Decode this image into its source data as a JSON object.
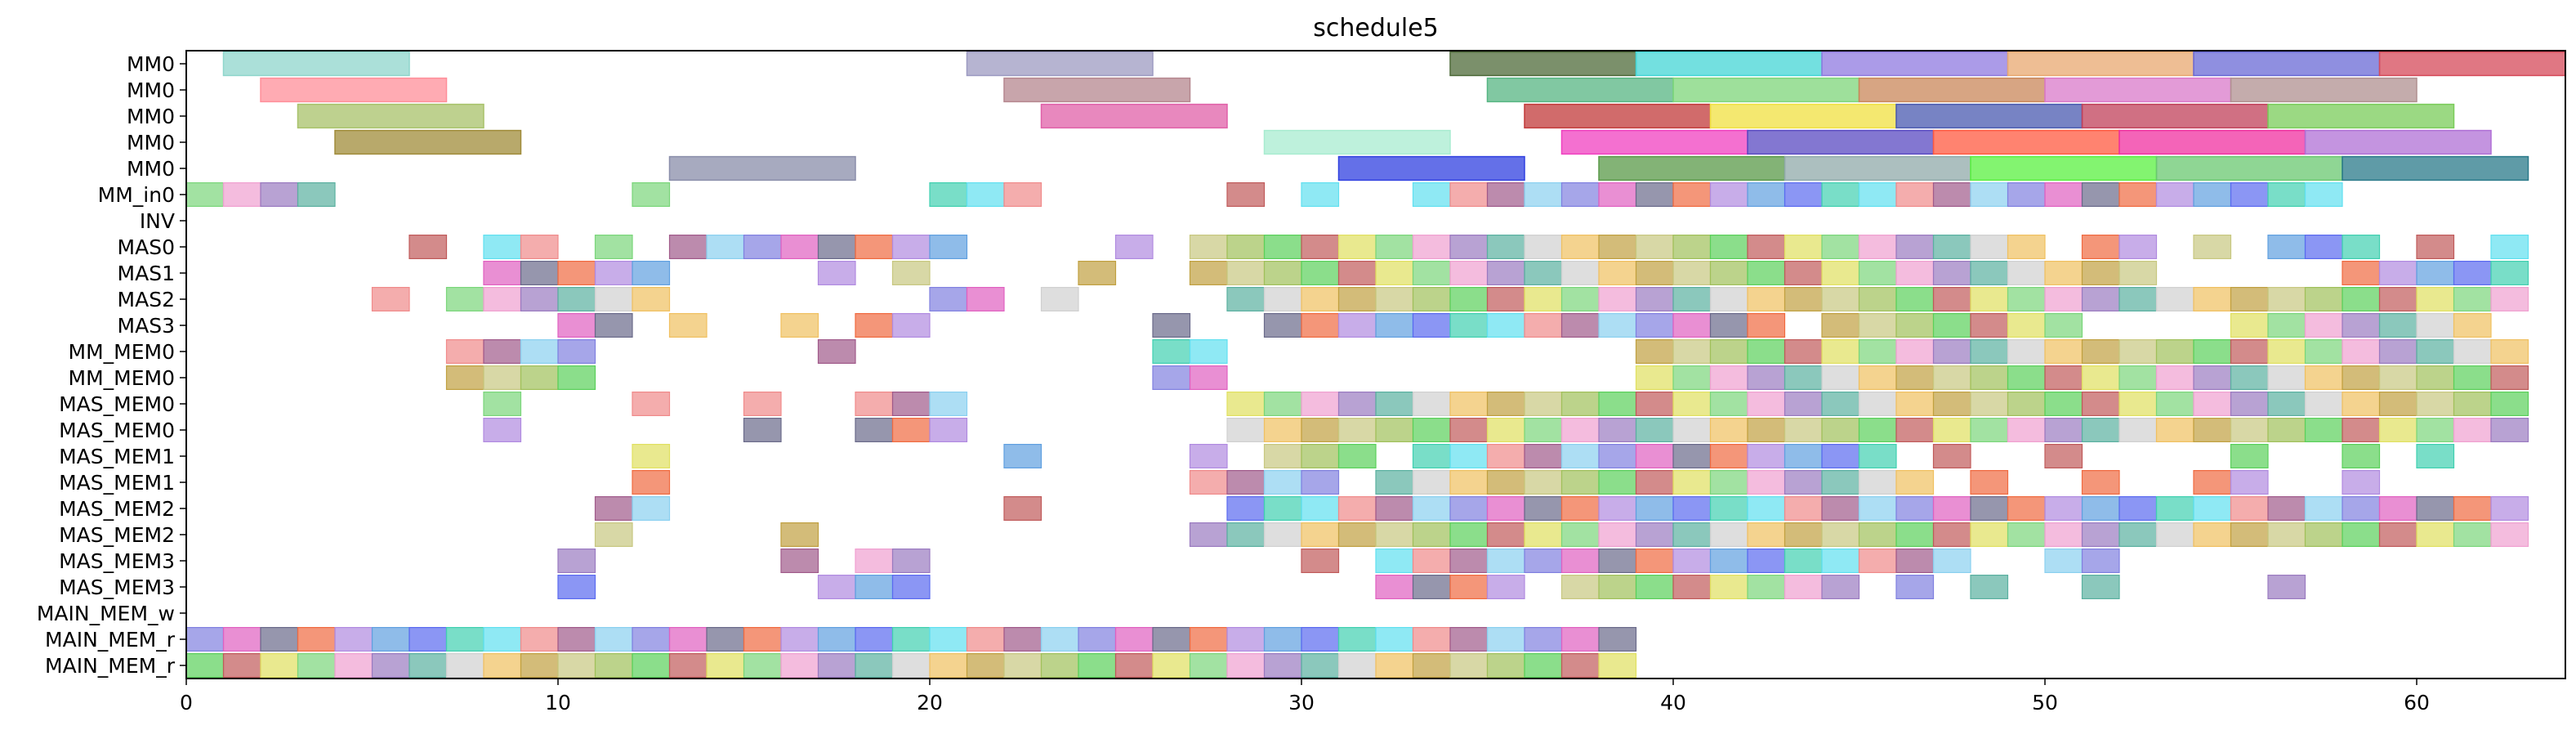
{
  "chart_data": {
    "type": "gantt",
    "title": "schedule5",
    "xlabel": "",
    "ylabel": "",
    "xlim": [
      0,
      64
    ],
    "x_ticks": [
      0,
      10,
      20,
      30,
      40,
      50,
      60
    ],
    "grid": false,
    "rows": [
      "MM0",
      "MM0",
      "MM0",
      "MM0",
      "MM0",
      "MM_in0",
      "INV",
      "MAS0",
      "MAS1",
      "MAS2",
      "MAS3",
      "MM_MEM0",
      "MM_MEM0",
      "MAS_MEM0",
      "MAS_MEM0",
      "MAS_MEM1",
      "MAS_MEM1",
      "MAS_MEM2",
      "MAS_MEM2",
      "MAS_MEM3",
      "MAS_MEM3",
      "MAIN_MEM_w",
      "MAIN_MEM_r",
      "MAIN_MEM_r"
    ],
    "bars": [
      {
        "row": 0,
        "start": 1,
        "end": 6,
        "color": "#8fd6cc"
      },
      {
        "row": 0,
        "start": 21,
        "end": 26,
        "color": "#9d9bc2"
      },
      {
        "row": 0,
        "start": 34,
        "end": 39,
        "color": "#4f6b3a"
      },
      {
        "row": 0,
        "start": 39,
        "end": 44,
        "color": "#44d6d6"
      },
      {
        "row": 0,
        "start": 44,
        "end": 49,
        "color": "#8f79e0"
      },
      {
        "row": 0,
        "start": 49,
        "end": 54,
        "color": "#e8a870"
      },
      {
        "row": 0,
        "start": 54,
        "end": 59,
        "color": "#6a6ad6"
      },
      {
        "row": 0,
        "start": 59,
        "end": 64,
        "color": "#d64a5a"
      },
      {
        "row": 1,
        "start": 2,
        "end": 7,
        "color": "#ff8f9a"
      },
      {
        "row": 1,
        "start": 22,
        "end": 27,
        "color": "#b5878f"
      },
      {
        "row": 1,
        "start": 35,
        "end": 40,
        "color": "#57b583"
      },
      {
        "row": 1,
        "start": 40,
        "end": 45,
        "color": "#7ed67a"
      },
      {
        "row": 1,
        "start": 45,
        "end": 50,
        "color": "#c9875a"
      },
      {
        "row": 1,
        "start": 50,
        "end": 55,
        "color": "#d979c9"
      },
      {
        "row": 1,
        "start": 55,
        "end": 60,
        "color": "#b09090"
      },
      {
        "row": 2,
        "start": 3,
        "end": 8,
        "color": "#a8c26a"
      },
      {
        "row": 2,
        "start": 23,
        "end": 28,
        "color": "#e060a8"
      },
      {
        "row": 2,
        "start": 36,
        "end": 41,
        "color": "#c23a3a"
      },
      {
        "row": 2,
        "start": 41,
        "end": 46,
        "color": "#f0e040"
      },
      {
        "row": 2,
        "start": 46,
        "end": 51,
        "color": "#4a5ab0"
      },
      {
        "row": 2,
        "start": 51,
        "end": 56,
        "color": "#c0405a"
      },
      {
        "row": 2,
        "start": 56,
        "end": 61,
        "color": "#7acc5a"
      },
      {
        "row": 3,
        "start": 4,
        "end": 9,
        "color": "#a08c3a"
      },
      {
        "row": 3,
        "start": 29,
        "end": 34,
        "color": "#a8ecd0"
      },
      {
        "row": 3,
        "start": 37,
        "end": 42,
        "color": "#f040c0"
      },
      {
        "row": 3,
        "start": 42,
        "end": 47,
        "color": "#5a4ac2"
      },
      {
        "row": 3,
        "start": 47,
        "end": 52,
        "color": "#ff5a40"
      },
      {
        "row": 3,
        "start": 52,
        "end": 57,
        "color": "#f030a0"
      },
      {
        "row": 3,
        "start": 57,
        "end": 62,
        "color": "#b070d6"
      },
      {
        "row": 4,
        "start": 13,
        "end": 18,
        "color": "#8a8eaa"
      },
      {
        "row": 4,
        "start": 31,
        "end": 36,
        "color": "#3040e0"
      },
      {
        "row": 4,
        "start": 38,
        "end": 43,
        "color": "#5a9a48"
      },
      {
        "row": 4,
        "start": 43,
        "end": 48,
        "color": "#90aaaa"
      },
      {
        "row": 4,
        "start": 48,
        "end": 53,
        "color": "#5af040"
      },
      {
        "row": 4,
        "start": 53,
        "end": 58,
        "color": "#6ac870"
      },
      {
        "row": 4,
        "start": 58,
        "end": 63,
        "color": "#2a7a8a"
      }
    ],
    "cells": [
      {
        "row": 5,
        "x": [
          0,
          1,
          2,
          3,
          12,
          20,
          21,
          22,
          28,
          30,
          33,
          34,
          35,
          36,
          37,
          38,
          39,
          40,
          41,
          42,
          43,
          44,
          45,
          46,
          47,
          48,
          49,
          50,
          51,
          52,
          53,
          54,
          55,
          56,
          57
        ]
      },
      {
        "row": 7,
        "x": [
          6,
          8,
          9,
          11,
          13,
          14,
          15,
          16,
          17,
          18,
          19,
          20,
          25,
          27,
          28,
          29,
          30,
          31,
          32,
          33,
          34,
          35,
          36,
          37,
          38,
          39,
          40,
          41,
          42,
          43,
          44,
          45,
          46,
          47,
          48,
          49,
          51,
          52,
          54,
          56,
          57,
          58,
          60,
          62
        ]
      },
      {
        "row": 8,
        "x": [
          8,
          9,
          10,
          11,
          12,
          17,
          19,
          24,
          27,
          28,
          29,
          30,
          31,
          32,
          33,
          34,
          35,
          36,
          37,
          38,
          39,
          40,
          41,
          42,
          43,
          44,
          45,
          46,
          47,
          48,
          49,
          50,
          51,
          52,
          58,
          59,
          60,
          61,
          62
        ]
      },
      {
        "row": 9,
        "x": [
          5,
          7,
          8,
          9,
          10,
          11,
          12,
          20,
          21,
          23,
          28,
          29,
          30,
          31,
          32,
          33,
          34,
          35,
          36,
          37,
          38,
          39,
          40,
          41,
          42,
          43,
          44,
          45,
          46,
          47,
          48,
          49,
          50,
          51,
          52,
          53,
          54,
          55,
          56,
          57,
          58,
          59,
          60,
          61,
          62
        ]
      },
      {
        "row": 10,
        "x": [
          10,
          11,
          13,
          16,
          18,
          19,
          26,
          29,
          30,
          31,
          32,
          33,
          34,
          35,
          36,
          37,
          38,
          39,
          40,
          41,
          42,
          44,
          45,
          46,
          47,
          48,
          49,
          50,
          55,
          56,
          57,
          58,
          59,
          60,
          61
        ]
      },
      {
        "row": 11,
        "x": [
          7,
          8,
          9,
          10,
          17,
          26,
          27,
          39,
          40,
          41,
          42,
          43,
          44,
          45,
          46,
          47,
          48,
          49,
          50,
          51,
          52,
          53,
          54,
          55,
          56,
          57,
          58,
          59,
          60,
          61,
          62
        ]
      },
      {
        "row": 12,
        "x": [
          7,
          8,
          9,
          10,
          26,
          27,
          39,
          40,
          41,
          42,
          43,
          44,
          45,
          46,
          47,
          48,
          49,
          50,
          51,
          52,
          53,
          54,
          55,
          56,
          57,
          58,
          59,
          60,
          61,
          62
        ]
      },
      {
        "row": 13,
        "x": [
          8,
          12,
          15,
          18,
          19,
          20,
          28,
          29,
          30,
          31,
          32,
          33,
          34,
          35,
          36,
          37,
          38,
          39,
          40,
          41,
          42,
          43,
          44,
          45,
          46,
          47,
          48,
          49,
          50,
          51,
          52,
          53,
          54,
          55,
          56,
          57,
          58,
          59,
          60,
          61,
          62
        ]
      },
      {
        "row": 14,
        "x": [
          8,
          15,
          18,
          19,
          20,
          28,
          29,
          30,
          31,
          32,
          33,
          34,
          35,
          36,
          37,
          38,
          39,
          40,
          41,
          42,
          43,
          44,
          45,
          46,
          47,
          48,
          49,
          50,
          51,
          52,
          53,
          54,
          55,
          56,
          57,
          58,
          59,
          60,
          61,
          62
        ]
      },
      {
        "row": 15,
        "x": [
          12,
          22,
          27,
          29,
          30,
          31,
          33,
          34,
          35,
          36,
          37,
          38,
          39,
          40,
          41,
          42,
          43,
          44,
          45,
          47,
          50,
          55,
          58,
          60
        ]
      },
      {
        "row": 16,
        "x": [
          12,
          27,
          28,
          29,
          30,
          32,
          33,
          34,
          35,
          36,
          37,
          38,
          39,
          40,
          41,
          42,
          43,
          44,
          45,
          46,
          48,
          51,
          54,
          55,
          58
        ]
      },
      {
        "row": 17,
        "x": [
          11,
          12,
          22,
          28,
          29,
          30,
          31,
          32,
          33,
          34,
          35,
          36,
          37,
          38,
          39,
          40,
          41,
          42,
          43,
          44,
          45,
          46,
          47,
          48,
          49,
          50,
          51,
          52,
          53,
          54,
          55,
          56,
          57,
          58,
          59,
          60,
          61,
          62
        ]
      },
      {
        "row": 18,
        "x": [
          11,
          16,
          27,
          28,
          29,
          30,
          31,
          32,
          33,
          34,
          35,
          36,
          37,
          38,
          39,
          40,
          41,
          42,
          43,
          44,
          45,
          46,
          47,
          48,
          49,
          50,
          51,
          52,
          53,
          54,
          55,
          56,
          57,
          58,
          59,
          60,
          61,
          62
        ]
      },
      {
        "row": 19,
        "x": [
          10,
          16,
          18,
          19,
          30,
          32,
          33,
          34,
          35,
          36,
          37,
          38,
          39,
          40,
          41,
          42,
          43,
          44,
          45,
          46,
          47,
          50,
          51
        ]
      },
      {
        "row": 20,
        "x": [
          10,
          17,
          18,
          19,
          32,
          33,
          34,
          35,
          37,
          38,
          39,
          40,
          41,
          42,
          43,
          44,
          46,
          48,
          51,
          56
        ]
      },
      {
        "row": 22,
        "x": [
          0,
          1,
          2,
          3,
          4,
          5,
          6,
          7,
          8,
          9,
          10,
          11,
          12,
          13,
          14,
          15,
          16,
          17,
          18,
          19,
          20,
          21,
          22,
          23,
          24,
          25,
          26,
          27,
          28,
          29,
          30,
          31,
          32,
          33,
          34,
          35,
          36,
          37,
          38
        ]
      },
      {
        "row": 23,
        "x": [
          0,
          1,
          2,
          3,
          4,
          5,
          6,
          7,
          8,
          9,
          10,
          11,
          12,
          13,
          14,
          15,
          16,
          17,
          18,
          19,
          20,
          21,
          22,
          23,
          24,
          25,
          26,
          27,
          28,
          29,
          30,
          31,
          32,
          33,
          34,
          35,
          36,
          37,
          38
        ]
      }
    ]
  }
}
